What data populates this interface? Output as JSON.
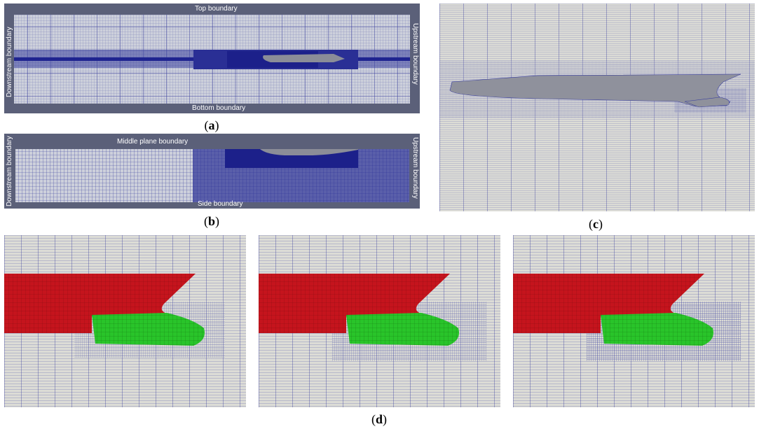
{
  "captions": {
    "a": {
      "open": "(",
      "letter": "a",
      "close": ")"
    },
    "b": {
      "open": "(",
      "letter": "b",
      "close": ")"
    },
    "c": {
      "open": "(",
      "letter": "c",
      "close": ")"
    },
    "d": {
      "open": "(",
      "letter": "d",
      "close": ")"
    }
  },
  "panel_a": {
    "top": "Top boundary",
    "bottom": "Bottom boundary",
    "left": "Downstream boundary",
    "right": "Upstream boundary"
  },
  "panel_b": {
    "top": "Middle plane boundary",
    "bottom": "Side boundary",
    "left": "Downstream boundary",
    "right": "Upstream boundary"
  },
  "colors": {
    "frame_bg": "#5b6079",
    "mesh_bg": "#cdd0db",
    "mesh_line": "#3a3f9e",
    "dense_mesh": "#2a2f95",
    "view_bg": "#dcdcd6",
    "hull_grey": "#8b8d98",
    "hull_red": "#c5141d",
    "bulb_green": "#29c42a"
  }
}
